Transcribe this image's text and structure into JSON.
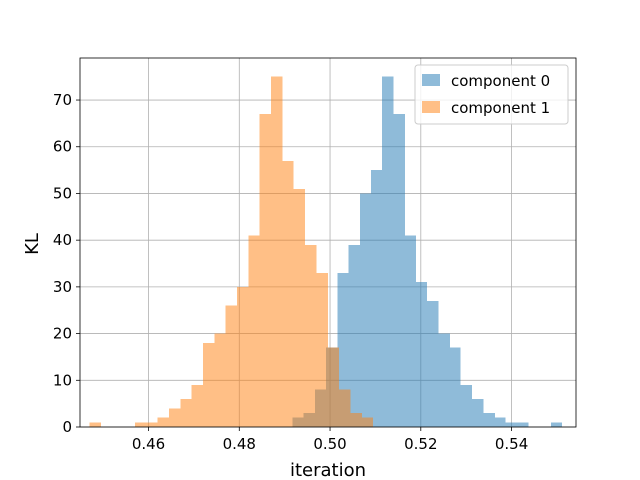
{
  "chart_data": {
    "type": "bar",
    "title": "",
    "xlabel": "iteration",
    "ylabel": "KL",
    "xlim": [
      0.4449,
      0.5542
    ],
    "ylim": [
      0,
      79
    ],
    "grid": true,
    "legend_position": "top-right",
    "x_ticks": [
      0.46,
      0.48,
      0.5,
      0.52,
      0.54
    ],
    "x_tick_labels": [
      "0.46",
      "0.48",
      "0.50",
      "0.52",
      "0.54"
    ],
    "y_ticks": [
      0,
      10,
      20,
      30,
      40,
      50,
      60,
      70
    ],
    "y_tick_labels": [
      "0",
      "10",
      "20",
      "30",
      "40",
      "50",
      "60",
      "70"
    ],
    "series": [
      {
        "name": "component 0",
        "color": "#1f77b4",
        "alpha": 0.5,
        "bins": [
          [
            0.4917,
            0.4942,
            2
          ],
          [
            0.4942,
            0.4967,
            3
          ],
          [
            0.4967,
            0.4991,
            8
          ],
          [
            0.4991,
            0.5016,
            17
          ],
          [
            0.5016,
            0.5041,
            33
          ],
          [
            0.5041,
            0.5066,
            39
          ],
          [
            0.5066,
            0.509,
            50
          ],
          [
            0.509,
            0.5115,
            55
          ],
          [
            0.5115,
            0.514,
            75
          ],
          [
            0.514,
            0.5165,
            67
          ],
          [
            0.5165,
            0.5189,
            41
          ],
          [
            0.5189,
            0.5214,
            31
          ],
          [
            0.5214,
            0.5239,
            27
          ],
          [
            0.5239,
            0.5264,
            20
          ],
          [
            0.5264,
            0.5288,
            17
          ],
          [
            0.5288,
            0.5313,
            9
          ],
          [
            0.5313,
            0.5338,
            6
          ],
          [
            0.5338,
            0.5363,
            3
          ],
          [
            0.5363,
            0.5387,
            2
          ],
          [
            0.5387,
            0.5412,
            1
          ],
          [
            0.5412,
            0.5437,
            1
          ],
          [
            0.5437,
            0.5462,
            0
          ],
          [
            0.5462,
            0.5487,
            0
          ],
          [
            0.5487,
            0.5511,
            1
          ]
        ]
      },
      {
        "name": "component 1",
        "color": "#ff7f0e",
        "alpha": 0.5,
        "bins": [
          [
            0.447,
            0.4495,
            1
          ],
          [
            0.4495,
            0.452,
            0
          ],
          [
            0.452,
            0.4545,
            0
          ],
          [
            0.4545,
            0.457,
            0
          ],
          [
            0.457,
            0.4595,
            1
          ],
          [
            0.4595,
            0.462,
            1
          ],
          [
            0.462,
            0.4645,
            2
          ],
          [
            0.4645,
            0.467,
            4
          ],
          [
            0.467,
            0.4695,
            6
          ],
          [
            0.4695,
            0.472,
            9
          ],
          [
            0.472,
            0.4745,
            18
          ],
          [
            0.4745,
            0.477,
            20
          ],
          [
            0.477,
            0.4795,
            26
          ],
          [
            0.4795,
            0.482,
            30
          ],
          [
            0.482,
            0.4845,
            41
          ],
          [
            0.4845,
            0.487,
            67
          ],
          [
            0.487,
            0.4895,
            75
          ],
          [
            0.4895,
            0.492,
            57
          ],
          [
            0.492,
            0.4945,
            51
          ],
          [
            0.4945,
            0.497,
            39
          ],
          [
            0.497,
            0.4995,
            33
          ],
          [
            0.4995,
            0.502,
            17
          ],
          [
            0.502,
            0.5045,
            8
          ],
          [
            0.5045,
            0.507,
            3
          ],
          [
            0.507,
            0.5095,
            2
          ]
        ]
      }
    ]
  }
}
